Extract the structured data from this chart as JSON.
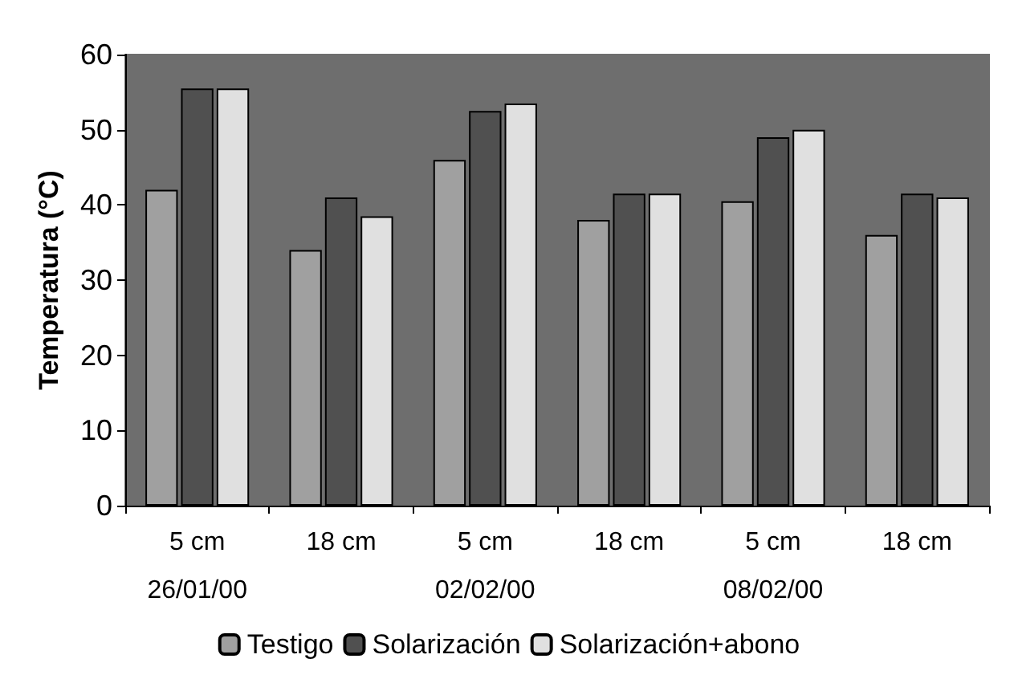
{
  "chart_data": {
    "type": "bar",
    "ylabel": "Temperatura (°C)",
    "categories": [
      "5 cm\n26/01/00",
      "18 cm",
      "5 cm\n02/02/00",
      "18 cm",
      "5 cm\n08/02/00",
      "18 cm"
    ],
    "series": [
      {
        "name": "Testigo",
        "color": "#a0a0a0",
        "values": [
          42,
          34,
          46,
          38,
          40.5,
          36
        ]
      },
      {
        "name": "Solarización",
        "color": "#505050",
        "values": [
          55.5,
          41,
          52.5,
          41.5,
          49,
          41.5
        ]
      },
      {
        "name": "Solarización+abono",
        "color": "#e0e0e0",
        "values": [
          55.5,
          38.5,
          53.5,
          41.5,
          50,
          41
        ]
      }
    ],
    "ylim": [
      0,
      60
    ],
    "yticks": [
      0,
      10,
      20,
      30,
      40,
      50,
      60
    ],
    "grid": false,
    "legend": "bottom"
  }
}
